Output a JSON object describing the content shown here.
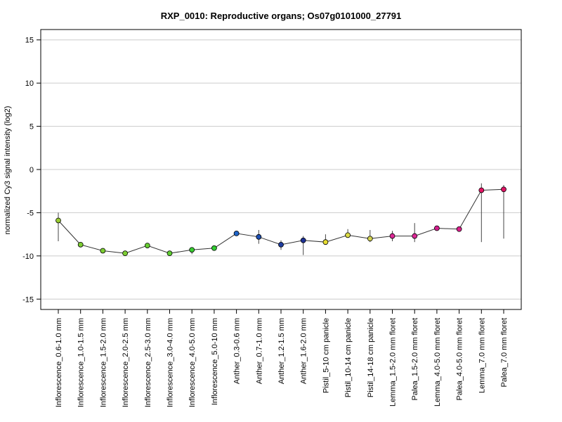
{
  "chart_data": {
    "type": "line",
    "title": "RXP_0010: Reproductive organs; Os07g0101000_27791",
    "xlabel": "",
    "ylabel": "normalized Cy3 signal intensity (log2)",
    "ylim": [
      -16.2,
      16.2
    ],
    "yticks": [
      15,
      10,
      5,
      0,
      -5,
      -10,
      -15
    ],
    "grid": true,
    "legend": "none",
    "categories": [
      "Inflorescence_0.6-1.0 mm",
      "Inflorescence_1.0-1.5 mm",
      "Inflorescence_1.5-2.0 mm",
      "Inflorescence_2.0-2.5 mm",
      "Inflorescence_2.5-3.0 mm",
      "Inflorescence_3.0-4.0 mm",
      "Inflorescence_4.0-5.0 mm",
      "Inflorescence_5.0-10 mm",
      "Anther_0.3-0.6 mm",
      "Anther_0.7-1.0 mm",
      "Anther_1.2-1.5 mm",
      "Anther_1.6-2.0 mm",
      "Pistil_5-10 cm panicle",
      "Pistil_10-14 cm panicle",
      "Pistil_14-18 cm panicle",
      "Lemma_1.5-2.0 mm floret",
      "Palea_1.5-2.0 mm floret",
      "Lemma_4.0-5.0 mm floret",
      "Palea_4.0-5.0 mm floret",
      "Lemma_7.0 mm floret",
      "Palea_7.0 mm floret"
    ],
    "series": [
      {
        "values": [
          -5.9,
          -8.7,
          -9.4,
          -9.7,
          -8.8,
          -9.7,
          -9.3,
          -9.1,
          -7.4,
          -7.8,
          -8.7,
          -8.2,
          -8.4,
          -7.6,
          -8.0,
          -7.7,
          -7.7,
          -6.8,
          -6.9,
          -2.4,
          -2.3
        ],
        "err_low": [
          -8.3,
          -8.8,
          -9.5,
          -9.8,
          -9.1,
          -9.8,
          -9.8,
          -9.3,
          -7.5,
          -8.6,
          -9.3,
          -9.9,
          -8.6,
          -7.8,
          -8.4,
          -8.3,
          -8.4,
          -7.0,
          -7.0,
          -8.4,
          -8.0
        ],
        "err_high": [
          -5.0,
          -8.5,
          -9.3,
          -9.6,
          -8.5,
          -9.6,
          -9.0,
          -8.9,
          -7.3,
          -7.0,
          -8.2,
          -7.7,
          -7.5,
          -6.9,
          -7.0,
          -7.1,
          -6.2,
          -6.6,
          -6.7,
          -1.6,
          -1.8
        ],
        "colors": [
          "#9acd32",
          "#7ccd32",
          "#7ccd32",
          "#7ccd32",
          "#66cd32",
          "#5fcd32",
          "#3acd32",
          "#32cd32",
          "#1e64c8",
          "#1e50b4",
          "#1e3ca0",
          "#1e3296",
          "#e6dc32",
          "#dcdc46",
          "#d2d250",
          "#dc2896",
          "#dc2896",
          "#d21e8c",
          "#dc1e8c",
          "#e61464",
          "#dc1464"
        ]
      }
    ]
  }
}
